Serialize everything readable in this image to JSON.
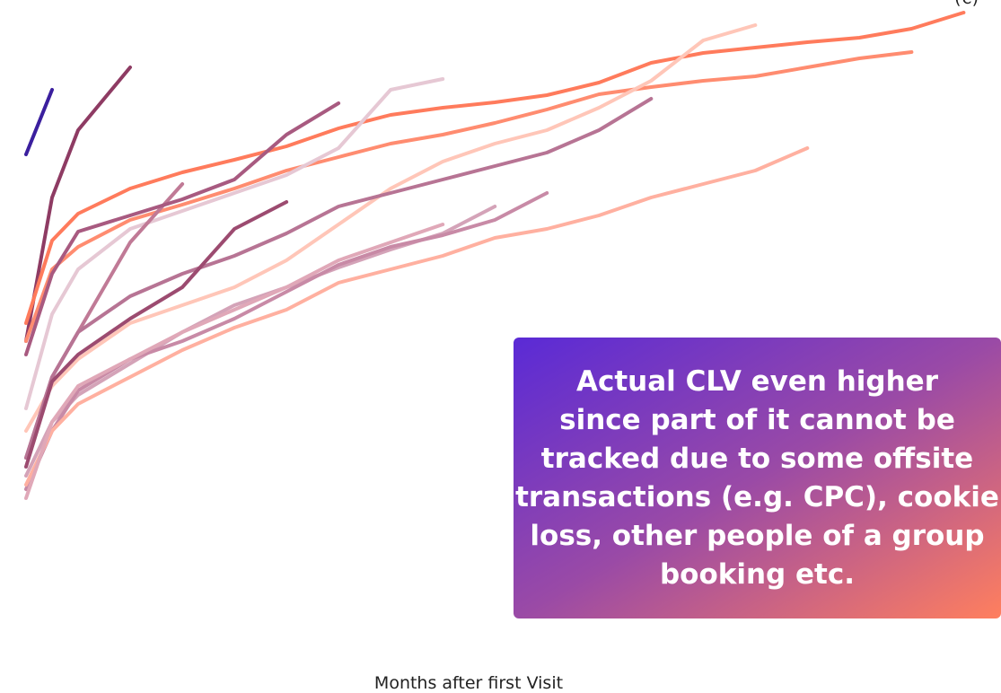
{
  "chart_data": {
    "type": "line",
    "x_label": "Months after first Visit",
    "y_label": "(€)",
    "annotation": [
      "Actual CLV even higher",
      "since part of it cannot be",
      "tracked due to some offsite",
      "transactions (e.g. CPC), cookie",
      "loss, other people of a group",
      "booking etc."
    ],
    "xlim": [
      0,
      37.4
    ],
    "ylim": [
      0,
      116
    ],
    "x": [
      0,
      1,
      2,
      4,
      6,
      8,
      10,
      12,
      14,
      16,
      18,
      20,
      22,
      24,
      26,
      28,
      30,
      32,
      34,
      36
    ],
    "series": [
      {
        "color": "#3b1f9e",
        "values": [
          81.6,
          96,
          null,
          null,
          null,
          null,
          null,
          null,
          null,
          null,
          null,
          null,
          null,
          null,
          null,
          null,
          null,
          null,
          null,
          null
        ]
      },
      {
        "color": "#8e3b63",
        "values": [
          40,
          72,
          87,
          101,
          null,
          null,
          null,
          null,
          null,
          null,
          null,
          null,
          null,
          null,
          null,
          null,
          null,
          null,
          null,
          null
        ]
      },
      {
        "color": "#ff7b5c",
        "values": [
          44,
          62.4,
          68.4,
          74,
          77.6,
          80.4,
          83.4,
          87.4,
          90.4,
          92,
          93.2,
          94.8,
          97.6,
          102,
          104.2,
          105.4,
          106.6,
          107.6,
          109.6,
          113.2
        ]
      },
      {
        "color": "#ff8c70",
        "values": [
          40,
          56,
          61,
          67,
          70.4,
          74,
          78,
          81,
          84,
          86,
          88.6,
          91.6,
          95,
          96.6,
          98,
          99,
          101,
          103,
          104.4,
          null
        ]
      },
      {
        "color": "#ffc6b8",
        "values": [
          20,
          30,
          36,
          44,
          48,
          52,
          58,
          66,
          74,
          80,
          84,
          87,
          92,
          98,
          107,
          110.4,
          null,
          null,
          null,
          null
        ]
      },
      {
        "color": "#e6c8d4",
        "values": [
          25,
          46,
          56,
          65,
          69,
          73,
          77,
          83,
          96,
          98.4,
          null,
          null,
          null,
          null,
          null,
          null,
          null,
          null,
          null,
          null
        ]
      },
      {
        "color": "#c07a96",
        "values": [
          14,
          32,
          42,
          62,
          75,
          null,
          null,
          null,
          null,
          null,
          null,
          null,
          null,
          null,
          null,
          null,
          null,
          null,
          null,
          null
        ]
      },
      {
        "color": "#a85a80",
        "values": [
          37,
          55,
          64.4,
          68,
          71.6,
          76,
          86,
          93,
          null,
          null,
          null,
          null,
          null,
          null,
          null,
          null,
          null,
          null,
          null,
          null
        ]
      },
      {
        "color": "#b77494",
        "values": [
          14,
          32,
          42,
          50,
          55,
          59,
          64,
          70,
          73,
          76,
          79,
          82,
          87,
          94,
          null,
          null,
          null,
          null,
          null,
          null
        ]
      },
      {
        "color": "#9c4b70",
        "values": [
          12,
          31,
          37,
          45,
          52,
          65,
          71,
          null,
          null,
          null,
          null,
          null,
          null,
          null,
          null,
          null,
          null,
          null,
          null,
          null
        ]
      },
      {
        "color": "#d4a3b8",
        "values": [
          10,
          22,
          28,
          35,
          42,
          48,
          52,
          56.4,
          60.4,
          64,
          70,
          null,
          null,
          null,
          null,
          null,
          null,
          null,
          null,
          null
        ]
      },
      {
        "color": "#c88aa6",
        "values": [
          7,
          20,
          29,
          36,
          40,
          45,
          51,
          57,
          61,
          63.6,
          67,
          73,
          null,
          null,
          null,
          null,
          null,
          null,
          null,
          null
        ]
      },
      {
        "color": "#ffb0a0",
        "values": [
          8,
          20,
          26,
          32,
          38,
          43,
          47,
          53,
          56,
          59,
          63,
          65,
          68,
          72,
          75,
          78,
          83,
          null,
          null,
          null
        ]
      },
      {
        "color": "#e0a8b8",
        "values": [
          5,
          22,
          30,
          36,
          42,
          47,
          52,
          58,
          62,
          66,
          null,
          null,
          null,
          null,
          null,
          null,
          null,
          null,
          null,
          null
        ]
      }
    ]
  }
}
